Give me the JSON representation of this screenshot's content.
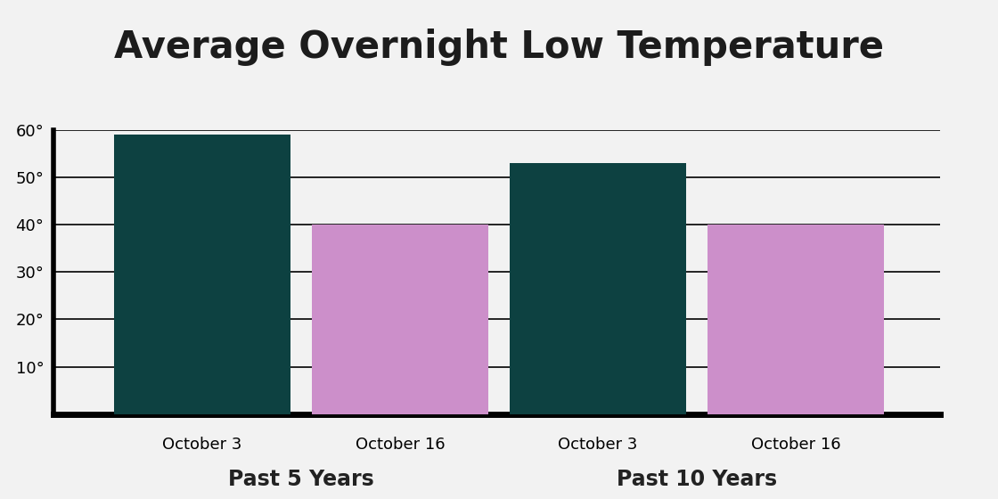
{
  "chart_data": {
    "type": "bar",
    "title": "Average Overnight Low Temperature",
    "categories": [
      "October 3",
      "October 16",
      "October 3",
      "October 16"
    ],
    "groups": [
      "Past 5 Years",
      "Past 10 Years"
    ],
    "values": [
      59,
      40,
      53,
      40
    ],
    "colors": [
      "#0d4141",
      "#cc8fca",
      "#0d4141",
      "#cc8fca"
    ],
    "ylim": [
      0,
      60
    ],
    "yticks": [
      {
        "value": 10,
        "label": "10°"
      },
      {
        "value": 20,
        "label": "20°"
      },
      {
        "value": 30,
        "label": "30°"
      },
      {
        "value": 40,
        "label": "40°"
      },
      {
        "value": 50,
        "label": "50°"
      },
      {
        "value": 60,
        "label": "60°"
      }
    ],
    "grid": true
  }
}
